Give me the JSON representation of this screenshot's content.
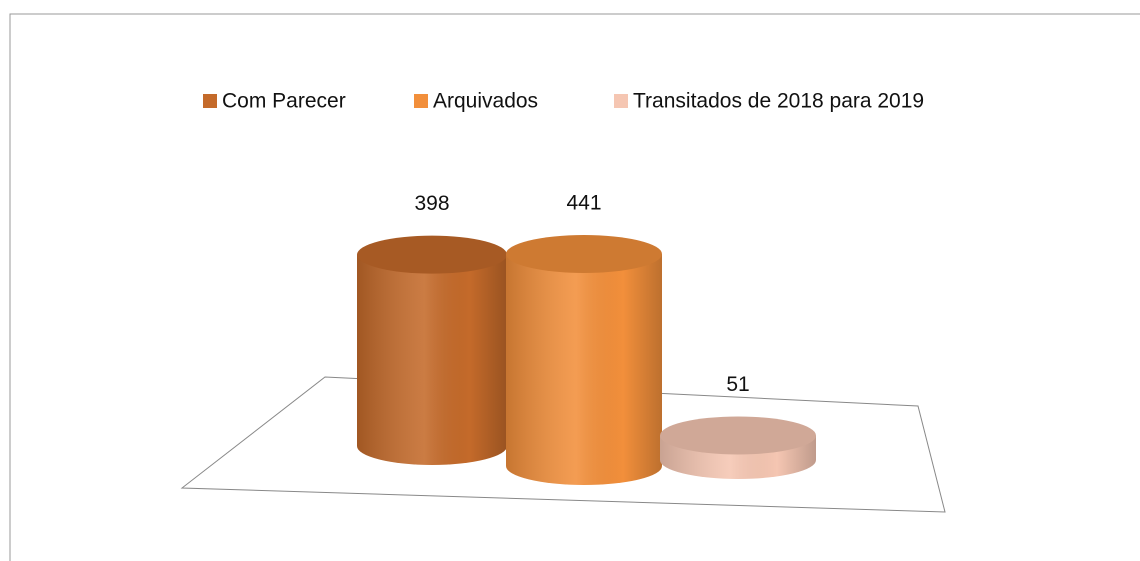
{
  "chart_data": {
    "type": "bar",
    "shape": "cylinder",
    "legend": "top",
    "categories": [
      null
    ],
    "series": [
      {
        "name": "Com Parecer",
        "color": "#c46a2a",
        "values": [
          398
        ]
      },
      {
        "name": "Arquivados",
        "color": "#f28f3b",
        "values": [
          441
        ]
      },
      {
        "name": "Transitados de 2018 para 2019",
        "color": "#f5c6b2",
        "values": [
          51
        ]
      }
    ]
  }
}
